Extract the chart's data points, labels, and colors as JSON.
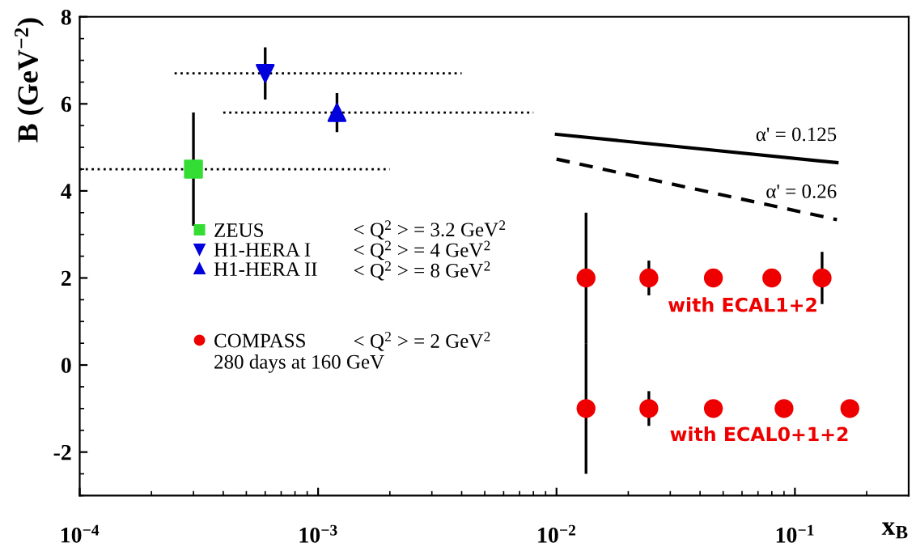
{
  "chart_data": {
    "type": "scatter",
    "xlabel": "x$_{B}$",
    "ylabel": "B (GeV$^{−2}$)",
    "log": "x",
    "xlim": [
      0.0001,
      0.3
    ],
    "ylim": [
      -3,
      8
    ],
    "xticks": [
      {
        "value": 0.0001,
        "label": "10$^{−4}$"
      },
      {
        "value": 0.001,
        "label": "10$^{−3}$"
      },
      {
        "value": 0.01,
        "label": "10$^{−2}$"
      },
      {
        "value": 0.1,
        "label": "10$^{−1}$"
      }
    ],
    "yticks": [
      -2,
      0,
      2,
      4,
      6,
      8
    ],
    "grid": false,
    "legend": "left",
    "series": [
      {
        "name": "ZEUS",
        "marker": "square",
        "color": "#33dd33",
        "x": [
          0.0003
        ],
        "values": [
          4.5
        ],
        "errors": [
          1.3
        ],
        "xerrors": [
          [
            0.0001,
            0.002
          ]
        ]
      },
      {
        "name": "H1-HERA I",
        "marker": "triangle_down",
        "color": "#0000dd",
        "x": [
          0.0006
        ],
        "values": [
          6.7
        ],
        "errors": [
          0.6
        ],
        "xerrors": [
          [
            0.00025,
            0.004
          ]
        ]
      },
      {
        "name": "H1-HERA II",
        "marker": "triangle",
        "color": "#0000dd",
        "x": [
          0.0012
        ],
        "values": [
          5.8
        ],
        "errors": [
          0.45
        ],
        "xerrors": [
          [
            0.0004,
            0.008
          ]
        ]
      },
      {
        "name": "COMPASS",
        "marker": "circle",
        "color": "#ee0000",
        "x": [
          0.0133,
          0.0244,
          0.0455,
          0.08,
          0.13,
          0.0133,
          0.0244,
          0.0455,
          0.09,
          0.17
        ],
        "values": [
          2,
          2,
          2,
          2,
          2,
          -1,
          -1,
          -1,
          -1,
          -1
        ],
        "errors": [
          1.5,
          0.4,
          null,
          null,
          0.6,
          1.5,
          0.4,
          null,
          null,
          null
        ]
      },
      {
        "name": "α' = 0.125",
        "type": "line",
        "line_style": "solid",
        "marker": "none",
        "color": "#000000",
        "x": [
          0.01,
          0.15
        ],
        "values": [
          5.3,
          4.65
        ]
      },
      {
        "name": "α' = 0.26",
        "type": "line",
        "line_style": "dashed",
        "marker": "none",
        "color": "#000000",
        "x": [
          0.01,
          0.15
        ],
        "values": [
          4.73,
          3.34
        ]
      }
    ],
    "annotations": [
      "< Q$^{2}$ > = 3.2 GeV$^{2}$",
      "< Q$^{2}$ > = 4 GeV$^{2}$",
      "< Q$^{2}$ > = 8 GeV$^{2}$",
      "< Q$^{2}$ > = 2 GeV$^{2}$",
      "280 days at 160 GeV",
      "with ECAL1+2",
      "with ECAL0+1+2"
    ]
  }
}
